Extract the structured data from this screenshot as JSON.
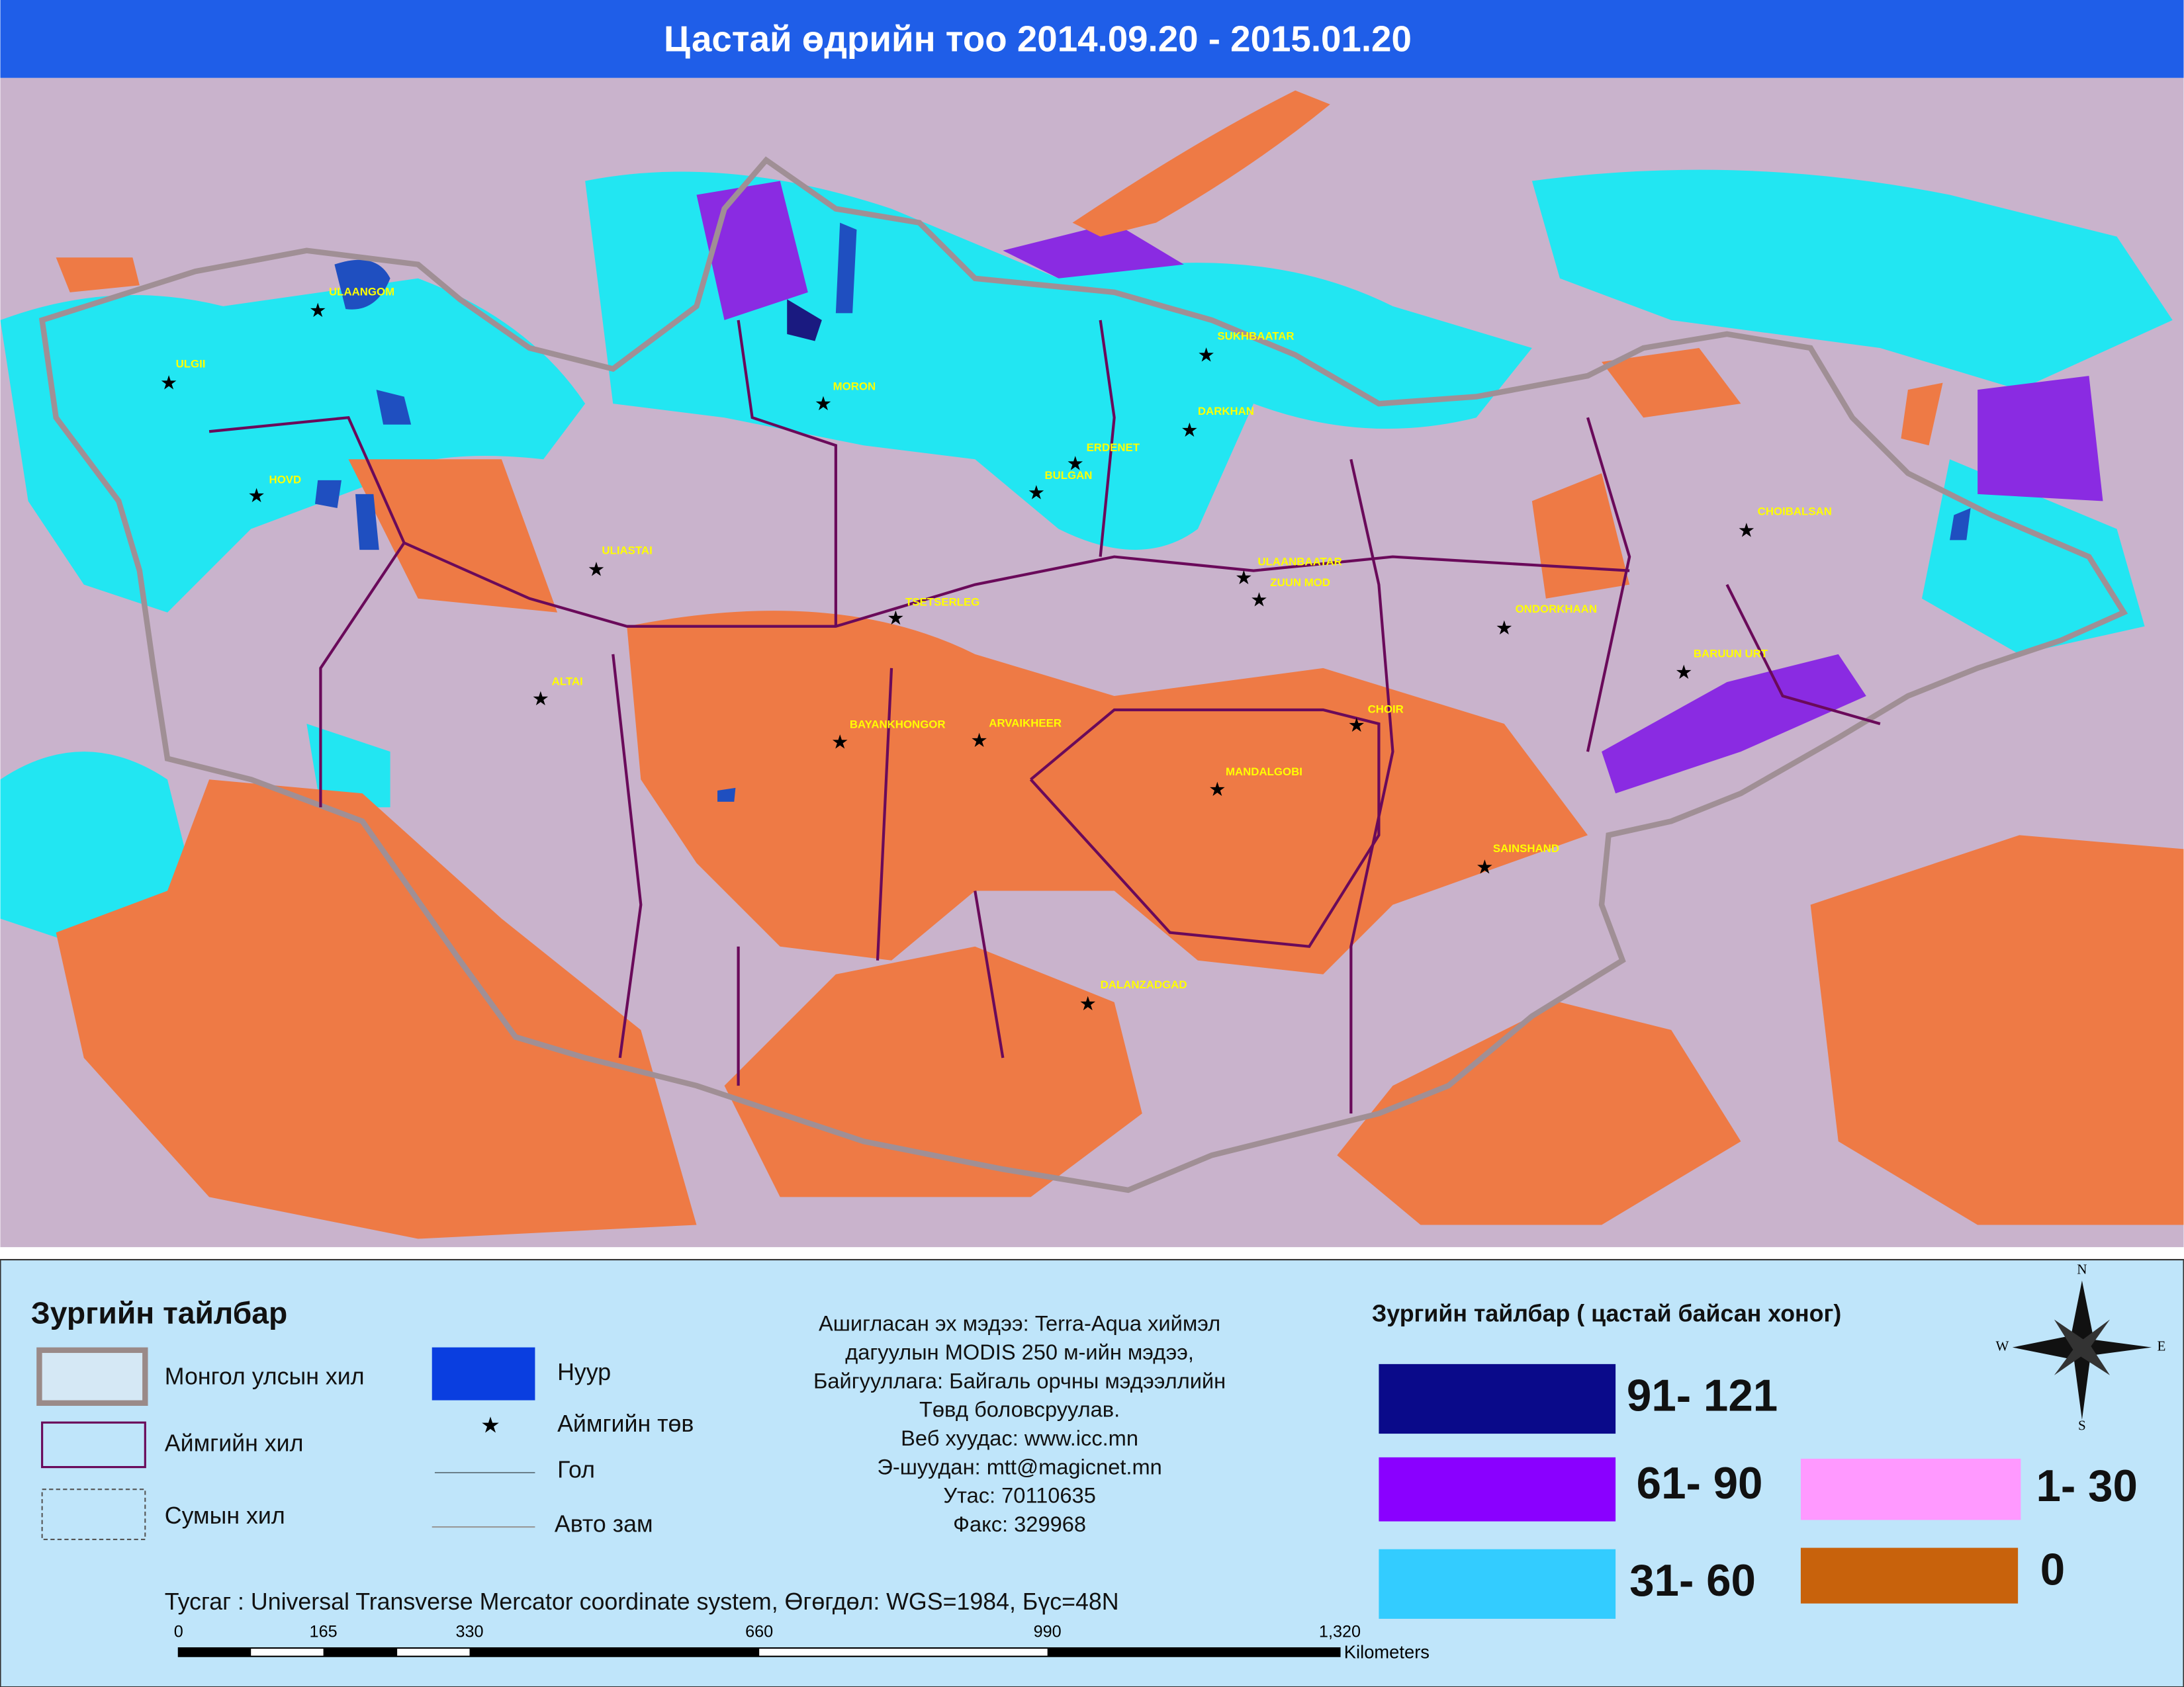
{
  "header": {
    "title": "Цастай өдрийн тоо 2014.09.20 - 2015.01.20"
  },
  "cities": [
    "ULAANGOM",
    "ULGII",
    "HOVD",
    "MORON",
    "SUKHBAATAR",
    "DARKHAN",
    "ERDENET",
    "BULGAN",
    "ULIASTAI",
    "TSETSERLEG",
    "ULAANBAATAR",
    "ZUUN MOD",
    "CHOIBALSAN",
    "ONDORKHAAN",
    "BARUUN URT",
    "ALTAI",
    "BAYANKHONGOR",
    "ARVAIKHEER",
    "CHOIR",
    "MANDALGOBI",
    "SAINSHAND",
    "DALANZADGAD"
  ],
  "legend": {
    "title": "Зургийн тайлбар",
    "items": [
      "Монгол улсын хил",
      "Аймгийн хил",
      "Сумын хил",
      "Нуур",
      "Аймгийн төв",
      "Гол",
      "Авто зам"
    ]
  },
  "info": [
    "Ашигласан эх мэдээ: Terra-Aqua хиймэл",
    "дагуулын MODIS 250 м-ийн мэдээ,",
    "Байгууллага: Байгаль орчны мэдээллийн",
    "Төвд боловсруулав.",
    "Веб хуудас: www.icc.mn",
    "Э-шуудан: mtt@magicnet.mn",
    "Утас: 70110635",
    "Факс: 329968"
  ],
  "snow_legend": {
    "title": "Зургийн тайлбар ( цастай байсан хоног)",
    "classes": [
      {
        "label": "91- 121",
        "color": "#0a0a8a"
      },
      {
        "label": "61- 90",
        "color": "#8a00ff"
      },
      {
        "label": "1- 30",
        "color": "#ff99ff"
      },
      {
        "label": "31- 60",
        "color": "#33ccff"
      },
      {
        "label": "0",
        "color": "#c8620c"
      }
    ]
  },
  "compass": {
    "n": "N",
    "e": "E",
    "s": "S",
    "w": "W"
  },
  "projection": "Тусгаг : Universal Transverse Mercator coordinate system, Өгөгдөл: WGS=1984, Бүс=48N",
  "scale": {
    "labels": [
      "0",
      "165",
      "330",
      "660",
      "990",
      "1,320"
    ],
    "unit": "Kilometers"
  }
}
